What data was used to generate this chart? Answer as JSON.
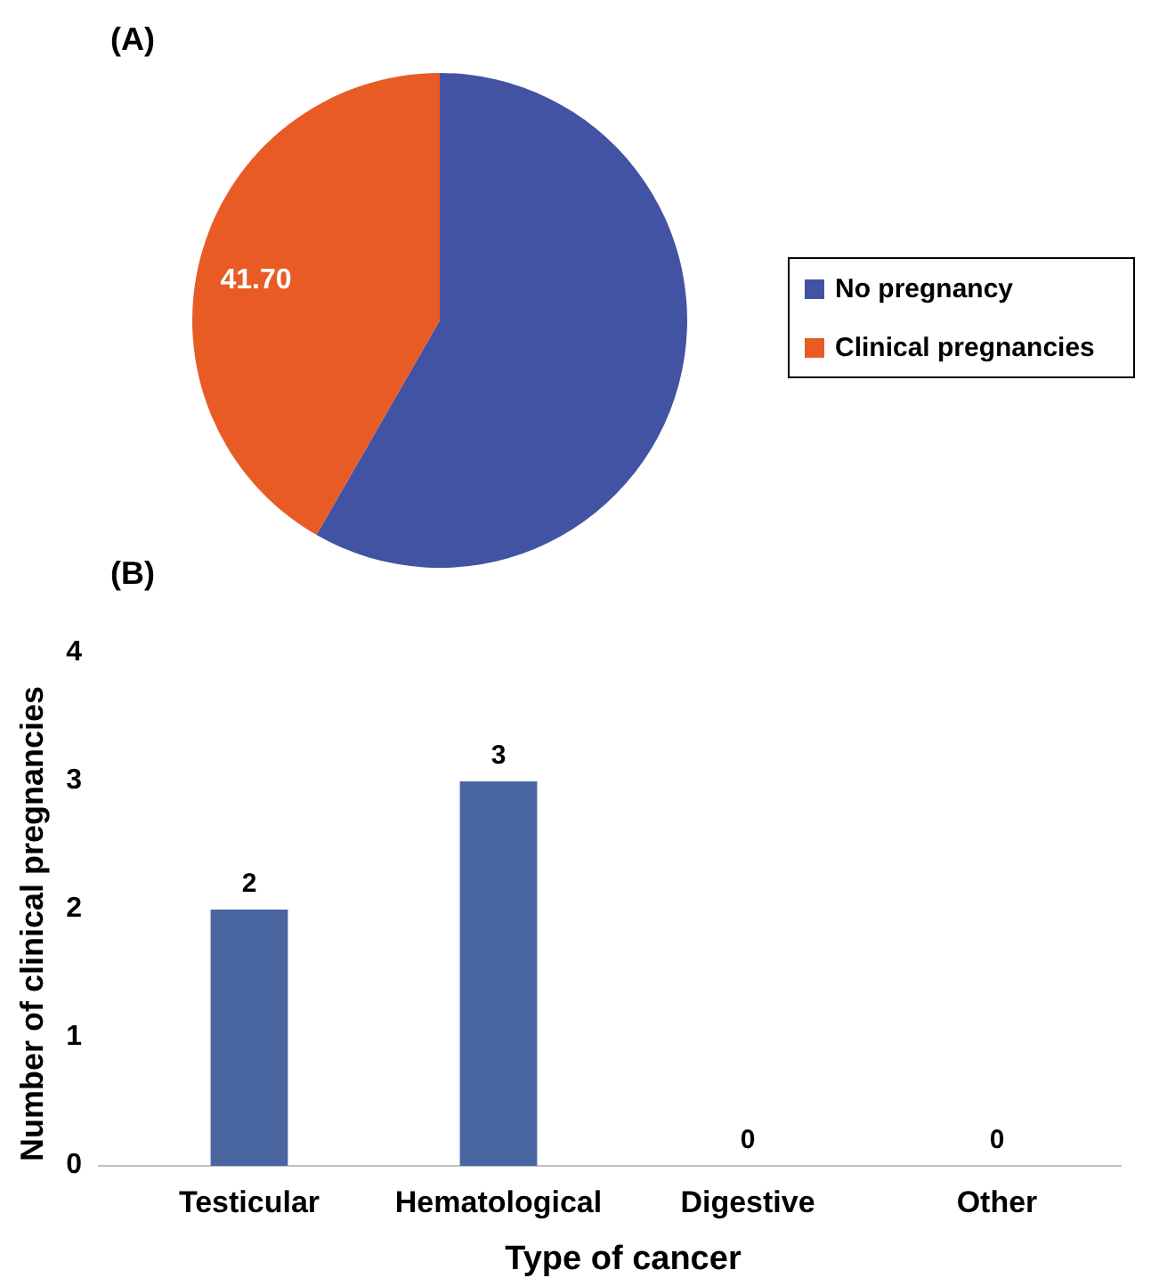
{
  "chart_data": [
    {
      "type": "pie",
      "title": "(A)",
      "categories": [
        "No pregnancy",
        "Clinical pregnancies"
      ],
      "values": [
        58.3,
        41.7
      ],
      "colors": [
        "#4353a3",
        "#e95b25"
      ],
      "value_labels": [
        null,
        "41.70"
      ],
      "legend": "right"
    },
    {
      "type": "bar",
      "title": "(B)",
      "categories": [
        "Testicular",
        "Hematological",
        "Digestive",
        "Other"
      ],
      "values": [
        2,
        3,
        0,
        0
      ],
      "color": "#4a66a0",
      "ylim": [
        0,
        4
      ],
      "yticks": [
        0,
        1,
        2,
        3,
        4
      ],
      "xlabel": "Type of cancer",
      "ylabel": "Number of clinical pregnancies",
      "data_labels": true
    }
  ]
}
